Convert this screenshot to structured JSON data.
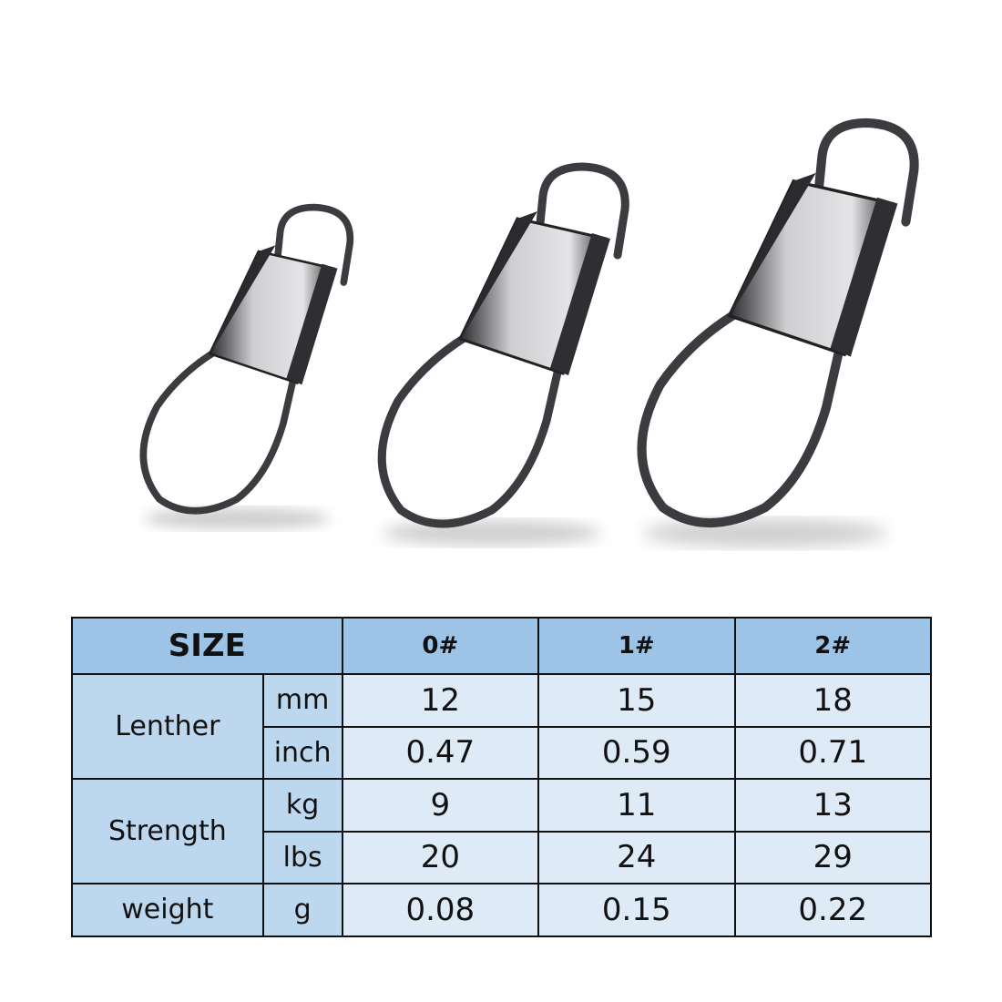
{
  "product_image": {
    "items": [
      "snap-size-0",
      "snap-size-1",
      "snap-size-2"
    ]
  },
  "table": {
    "header": {
      "size_label": "SIZE",
      "sizes": [
        "0#",
        "1#",
        "2#"
      ]
    },
    "rows": [
      {
        "group": "Lenther",
        "unit": "mm",
        "values": [
          "12",
          "15",
          "18"
        ]
      },
      {
        "unit": "inch",
        "values": [
          "0.47",
          "0.59",
          "0.71"
        ]
      },
      {
        "group": "Strength",
        "unit": "kg",
        "values": [
          "9",
          "11",
          "13"
        ]
      },
      {
        "unit": "lbs",
        "values": [
          "20",
          "24",
          "29"
        ]
      },
      {
        "group": "weight",
        "unit": "g",
        "values": [
          "0.08",
          "0.15",
          "0.22"
        ]
      }
    ]
  },
  "colors": {
    "header_bg": "#9dc3e6",
    "label_bg": "#bdd7ee",
    "value_bg": "#deebf7"
  }
}
